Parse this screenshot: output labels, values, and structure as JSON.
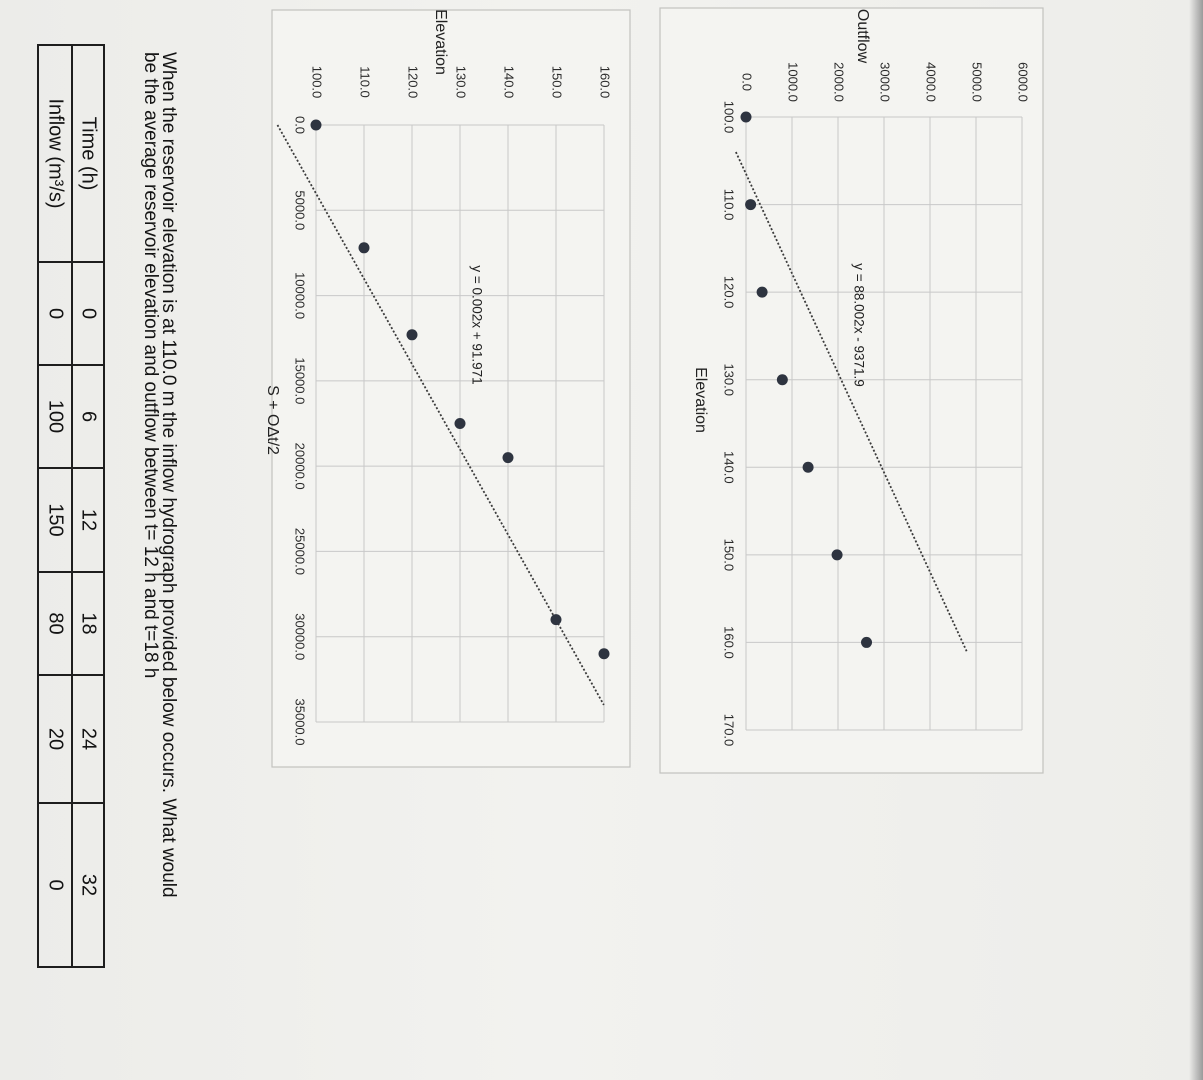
{
  "question": {
    "line1": "When the reservoir elevation is at 110.0 m the inflow hydrograph provided below occurs. What would",
    "line2": "be the average reservoir elevation and outflow between t= 12 h and t=18 h"
  },
  "hydrograph_table": {
    "row_labels": [
      "Time (h)",
      "Inflow (m³/s)"
    ],
    "time_h": [
      "0",
      "6",
      "12",
      "18",
      "24",
      "32"
    ],
    "inflow": [
      "0",
      "100",
      "150",
      "80",
      "20",
      "0"
    ]
  },
  "colors": {
    "point": "#2e3440",
    "grid": "#c8c8c8",
    "trend": "#3b3b3b"
  },
  "chart_data": [
    {
      "type": "scatter",
      "title": "",
      "xlabel": "Elevation",
      "ylabel": "Outflow",
      "xlim": [
        100,
        170
      ],
      "ylim": [
        0,
        6000
      ],
      "x_ticks": [
        "100.0",
        "110.0",
        "120.0",
        "130.0",
        "140.0",
        "150.0",
        "160.0",
        "170.0"
      ],
      "y_ticks": [
        "0.0",
        "1000.0",
        "2000.0",
        "3000.0",
        "4000.0",
        "5000.0",
        "6000.0"
      ],
      "grid": true,
      "trendline": {
        "label": "y = 88.002x - 9371.9",
        "slope": 88.002,
        "intercept": -9371.9,
        "x_range": [
          104,
          161
        ]
      },
      "points": [
        {
          "x": 100,
          "y": 0
        },
        {
          "x": 110,
          "y": 100
        },
        {
          "x": 120,
          "y": 350
        },
        {
          "x": 130,
          "y": 790
        },
        {
          "x": 140,
          "y": 1350
        },
        {
          "x": 150,
          "y": 1980
        },
        {
          "x": 160,
          "y": 2620
        }
      ]
    },
    {
      "type": "scatter",
      "title": "",
      "xlabel": "S + OΔt/2",
      "ylabel": "Elevation",
      "xlim": [
        0,
        35000
      ],
      "ylim": [
        100,
        160
      ],
      "x_ticks": [
        "0.0",
        "5000.0",
        "10000.0",
        "15000.0",
        "20000.0",
        "25000.0",
        "30000.0",
        "35000.0"
      ],
      "y_ticks": [
        "100.0",
        "110.0",
        "120.0",
        "130.0",
        "140.0",
        "150.0",
        "160.0"
      ],
      "grid": true,
      "trendline": {
        "label": "y = 0.002x + 91.971",
        "slope": 0.002,
        "intercept": 91.971,
        "x_range": [
          0,
          34000
        ]
      },
      "points": [
        {
          "x": 0,
          "y": 100
        },
        {
          "x": 7200,
          "y": 110
        },
        {
          "x": 12300,
          "y": 120
        },
        {
          "x": 17500,
          "y": 130
        },
        {
          "x": 19500,
          "y": 140
        },
        {
          "x": 29000,
          "y": 150
        },
        {
          "x": 31000,
          "y": 160
        }
      ]
    }
  ]
}
